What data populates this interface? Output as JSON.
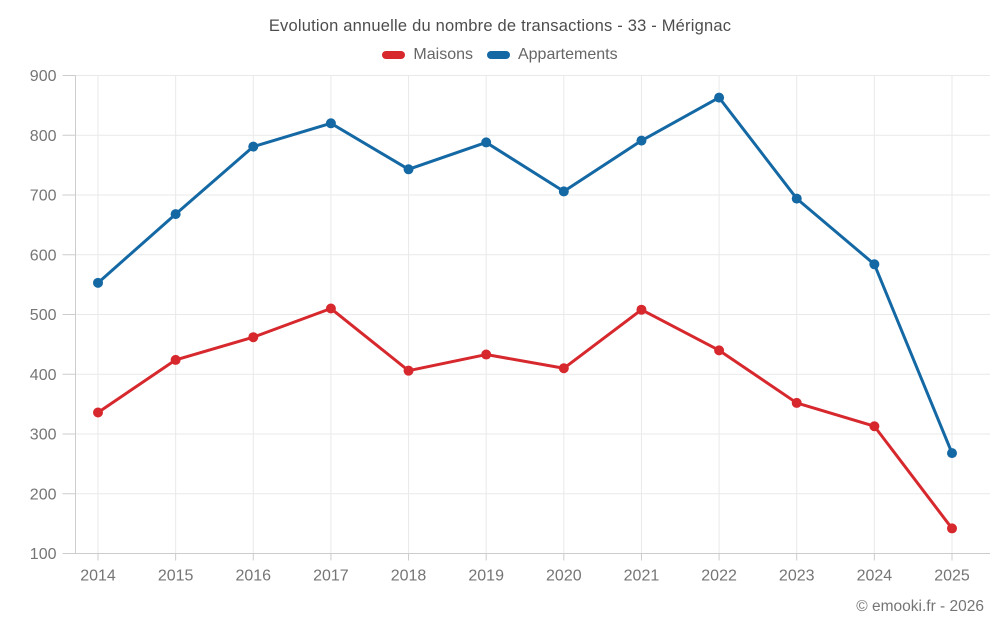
{
  "header": {
    "title": "Evolution annuelle du nombre de transactions - 33 - Mérignac"
  },
  "footer": {
    "credit": "© emooki.fr - 2026"
  },
  "colors": {
    "maisons": "#d6282d",
    "appartements": "#1468a4",
    "grid": "#e9e9e9",
    "axis": "#cccccc",
    "tick_text": "#757575"
  },
  "chart_data": {
    "type": "line",
    "title": "Evolution annuelle du nombre de transactions - 33 - Mérignac",
    "categories": [
      "2014",
      "2015",
      "2016",
      "2017",
      "2018",
      "2019",
      "2020",
      "2021",
      "2022",
      "2023",
      "2024",
      "2025"
    ],
    "series": [
      {
        "name": "Maisons",
        "color": "#d6282d",
        "values": [
          336,
          424,
          462,
          510,
          406,
          433,
          410,
          508,
          440,
          352,
          313,
          142
        ]
      },
      {
        "name": "Appartements",
        "color": "#1468a4",
        "values": [
          553,
          668,
          781,
          820,
          743,
          788,
          706,
          791,
          863,
          694,
          584,
          268
        ]
      }
    ],
    "xlabel": "",
    "ylabel": "",
    "ylim": [
      100,
      900
    ],
    "yticks": [
      100,
      200,
      300,
      400,
      500,
      600,
      700,
      800,
      900
    ],
    "grid": true,
    "legend_position": "top",
    "marker": "circle",
    "footer": "© emooki.fr - 2026"
  }
}
